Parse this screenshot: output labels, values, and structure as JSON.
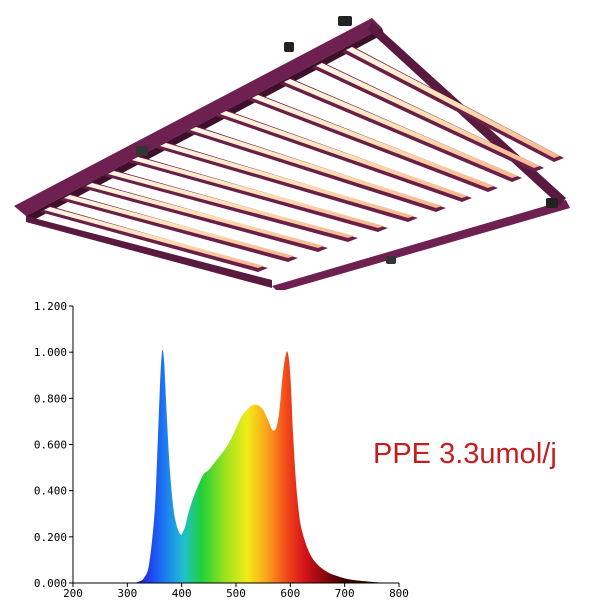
{
  "product": {
    "ppe_text": "PPE 3.3umol/j",
    "frame_color": "#6e2050",
    "bar_color": "#6a1f47",
    "led_glow_color": "#ffe3b8"
  },
  "chart_data": {
    "type": "area",
    "title": "",
    "xlabel": "",
    "ylabel": "",
    "xlim": [
      200,
      800
    ],
    "ylim": [
      0,
      1.2
    ],
    "x_ticks": [
      "200",
      "300",
      "400",
      "500",
      "600",
      "700",
      "800"
    ],
    "y_ticks": [
      "0.000",
      "0.200",
      "0.400",
      "0.600",
      "0.800",
      "1.000",
      "1.200"
    ],
    "grid": false,
    "fill": "visible-spectrum gradient",
    "series": [
      {
        "x": [
          310,
          320,
          330,
          340,
          350,
          355,
          360,
          363,
          365,
          368,
          372,
          378,
          385,
          392,
          398,
          402,
          407,
          412,
          420,
          430,
          440,
          450,
          460,
          470,
          480,
          490,
          500,
          510,
          520,
          530,
          540,
          550,
          560,
          565,
          570,
          575,
          580,
          585,
          590,
          595,
          600,
          605,
          610,
          615,
          620,
          630,
          640,
          650,
          660,
          670,
          680,
          700,
          720,
          750,
          780
        ],
        "y": [
          0.0,
          0.005,
          0.02,
          0.08,
          0.3,
          0.55,
          0.85,
          0.98,
          1.01,
          0.95,
          0.75,
          0.5,
          0.32,
          0.24,
          0.21,
          0.22,
          0.25,
          0.3,
          0.36,
          0.42,
          0.47,
          0.49,
          0.52,
          0.55,
          0.58,
          0.62,
          0.67,
          0.72,
          0.75,
          0.77,
          0.77,
          0.75,
          0.7,
          0.67,
          0.66,
          0.68,
          0.75,
          0.88,
          0.97,
          1.0,
          0.9,
          0.65,
          0.45,
          0.32,
          0.24,
          0.16,
          0.11,
          0.08,
          0.06,
          0.045,
          0.035,
          0.02,
          0.012,
          0.005,
          0.0
        ]
      }
    ]
  }
}
